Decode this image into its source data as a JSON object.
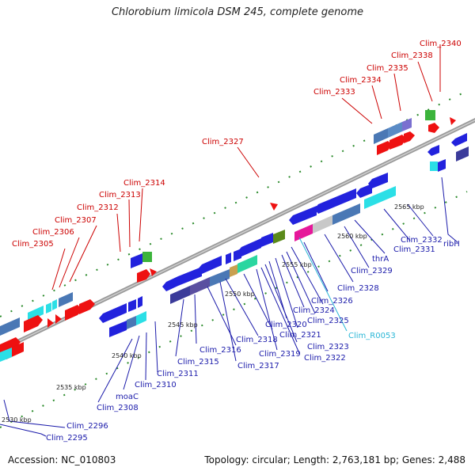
{
  "title": "Chlorobium limicola DSM 245, complete genome",
  "footer": {
    "accession": "Accession: NC_010803",
    "topology": "Topology: circular; Length: 2,763,181 bp; Genes: 2,488"
  },
  "colors": {
    "forward_label": "#cc0000",
    "reverse_label": "#1a1aaa",
    "rna_label": "#29b6d6",
    "backbone": "#888888",
    "tick": "#2a8a2a"
  },
  "kbp_labels": [
    "2530 kbp",
    "2535 kbp",
    "2540 kbp",
    "2545 kbp",
    "2550 kbp",
    "2555 kbp",
    "2560 kbp",
    "2565 kbp"
  ],
  "forward_genes": [
    "Clim_2340",
    "Clim_2338",
    "Clim_2335",
    "Clim_2334",
    "Clim_2333",
    "Clim_2327",
    "Clim_2314",
    "Clim_2313",
    "Clim_2312",
    "Clim_2307",
    "Clim_2306",
    "Clim_2305"
  ],
  "reverse_genes": [
    "ribH",
    "Clim_2332",
    "Clim_2331",
    "thrA",
    "Clim_2329",
    "Clim_2328",
    "Clim_R0053",
    "Clim_2326",
    "Clim_2325",
    "Clim_2324",
    "Clim_2321",
    "Clim_2320",
    "Clim_2323",
    "Clim_2322",
    "Clim_2319",
    "Clim_2318",
    "Clim_2317",
    "Clim_2316",
    "Clim_2315",
    "Clim_2311",
    "Clim_2310",
    "moaC",
    "Clim_2308",
    "Clim_2296",
    "Clim_2295"
  ]
}
